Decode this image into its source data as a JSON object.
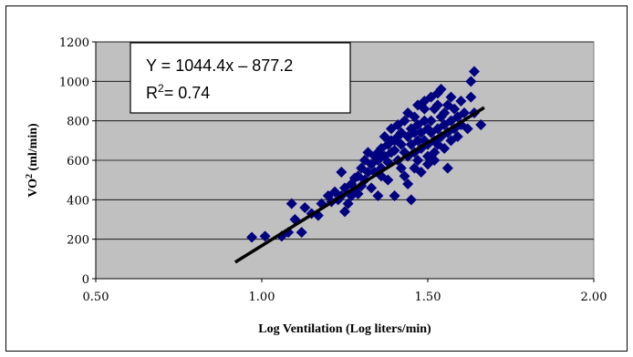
{
  "chart_data": {
    "type": "scatter",
    "title": "",
    "xlabel": "Log Ventilation (Log liters/min)",
    "ylabel_main": "VO",
    "ylabel_sup": "2",
    "ylabel_tail": " (ml/min)",
    "xlim": [
      0.5,
      2.0
    ],
    "ylim": [
      0,
      1200
    ],
    "x_ticks": [
      "0.50",
      "1.00",
      "1.50",
      "2.00"
    ],
    "y_ticks": [
      "0",
      "200",
      "400",
      "600",
      "800",
      "1000",
      "1200"
    ],
    "grid": "horizontal",
    "plot_background": "#c0c0c0",
    "marker_color": "#000080",
    "line_color": "#000000",
    "annotation": {
      "equation": "Y = 1044.4x – 877.2",
      "r2_main": "R",
      "r2_sup": "2",
      "r2_tail": "= 0.74"
    },
    "trendline": {
      "slope": 1044.4,
      "intercept": -877.2,
      "x": [
        0.92,
        1.67
      ]
    },
    "points": [
      [
        0.97,
        210
      ],
      [
        1.01,
        215
      ],
      [
        1.06,
        215
      ],
      [
        1.08,
        235
      ],
      [
        1.09,
        380
      ],
      [
        1.1,
        300
      ],
      [
        1.12,
        235
      ],
      [
        1.13,
        360
      ],
      [
        1.15,
        330
      ],
      [
        1.17,
        320
      ],
      [
        1.18,
        380
      ],
      [
        1.2,
        420
      ],
      [
        1.21,
        390
      ],
      [
        1.22,
        440
      ],
      [
        1.23,
        400
      ],
      [
        1.24,
        540
      ],
      [
        1.24,
        420
      ],
      [
        1.25,
        460
      ],
      [
        1.25,
        340
      ],
      [
        1.26,
        380
      ],
      [
        1.27,
        420
      ],
      [
        1.27,
        480
      ],
      [
        1.28,
        450
      ],
      [
        1.28,
        510
      ],
      [
        1.29,
        430
      ],
      [
        1.29,
        520
      ],
      [
        1.3,
        560
      ],
      [
        1.3,
        470
      ],
      [
        1.31,
        600
      ],
      [
        1.31,
        500
      ],
      [
        1.32,
        640
      ],
      [
        1.32,
        540
      ],
      [
        1.33,
        460
      ],
      [
        1.33,
        580
      ],
      [
        1.34,
        620
      ],
      [
        1.34,
        540
      ],
      [
        1.35,
        420
      ],
      [
        1.35,
        600
      ],
      [
        1.36,
        660
      ],
      [
        1.36,
        560
      ],
      [
        1.37,
        720
      ],
      [
        1.37,
        620
      ],
      [
        1.38,
        680
      ],
      [
        1.38,
        590
      ],
      [
        1.39,
        640
      ],
      [
        1.39,
        760
      ],
      [
        1.4,
        700
      ],
      [
        1.4,
        650
      ],
      [
        1.4,
        420
      ],
      [
        1.41,
        780
      ],
      [
        1.41,
        600
      ],
      [
        1.42,
        740
      ],
      [
        1.42,
        680
      ],
      [
        1.43,
        640
      ],
      [
        1.43,
        800
      ],
      [
        1.44,
        720
      ],
      [
        1.44,
        480
      ],
      [
        1.44,
        620
      ],
      [
        1.45,
        760
      ],
      [
        1.45,
        680
      ],
      [
        1.45,
        400
      ],
      [
        1.46,
        740
      ],
      [
        1.46,
        640
      ],
      [
        1.46,
        820
      ],
      [
        1.47,
        700
      ],
      [
        1.47,
        780
      ],
      [
        1.47,
        600
      ],
      [
        1.48,
        740
      ],
      [
        1.48,
        660
      ],
      [
        1.48,
        540
      ],
      [
        1.49,
        800
      ],
      [
        1.49,
        700
      ],
      [
        1.49,
        860
      ],
      [
        1.5,
        760
      ],
      [
        1.5,
        680
      ],
      [
        1.5,
        620
      ],
      [
        1.51,
        920
      ],
      [
        1.51,
        740
      ],
      [
        1.51,
        800
      ],
      [
        1.52,
        700
      ],
      [
        1.52,
        860
      ],
      [
        1.52,
        640
      ],
      [
        1.53,
        760
      ],
      [
        1.53,
        940
      ],
      [
        1.53,
        680
      ],
      [
        1.54,
        820
      ],
      [
        1.54,
        720
      ],
      [
        1.54,
        960
      ],
      [
        1.55,
        780
      ],
      [
        1.55,
        660
      ],
      [
        1.56,
        740
      ],
      [
        1.56,
        880
      ],
      [
        1.56,
        560
      ],
      [
        1.57,
        800
      ],
      [
        1.57,
        700
      ],
      [
        1.58,
        860
      ],
      [
        1.58,
        760
      ],
      [
        1.59,
        820
      ],
      [
        1.59,
        720
      ],
      [
        1.6,
        900
      ],
      [
        1.6,
        780
      ],
      [
        1.61,
        840
      ],
      [
        1.62,
        760
      ],
      [
        1.63,
        1000
      ],
      [
        1.63,
        920
      ],
      [
        1.64,
        1050
      ],
      [
        1.64,
        840
      ],
      [
        1.66,
        780
      ],
      [
        1.36,
        520
      ],
      [
        1.38,
        500
      ],
      [
        1.42,
        560
      ],
      [
        1.43,
        520
      ],
      [
        1.46,
        560
      ],
      [
        1.5,
        580
      ],
      [
        1.52,
        600
      ],
      [
        1.47,
        880
      ],
      [
        1.49,
        900
      ],
      [
        1.53,
        880
      ],
      [
        1.55,
        840
      ],
      [
        1.57,
        920
      ],
      [
        1.44,
        840
      ],
      [
        1.41,
        720
      ],
      [
        1.39,
        700
      ],
      [
        1.35,
        640
      ]
    ]
  }
}
